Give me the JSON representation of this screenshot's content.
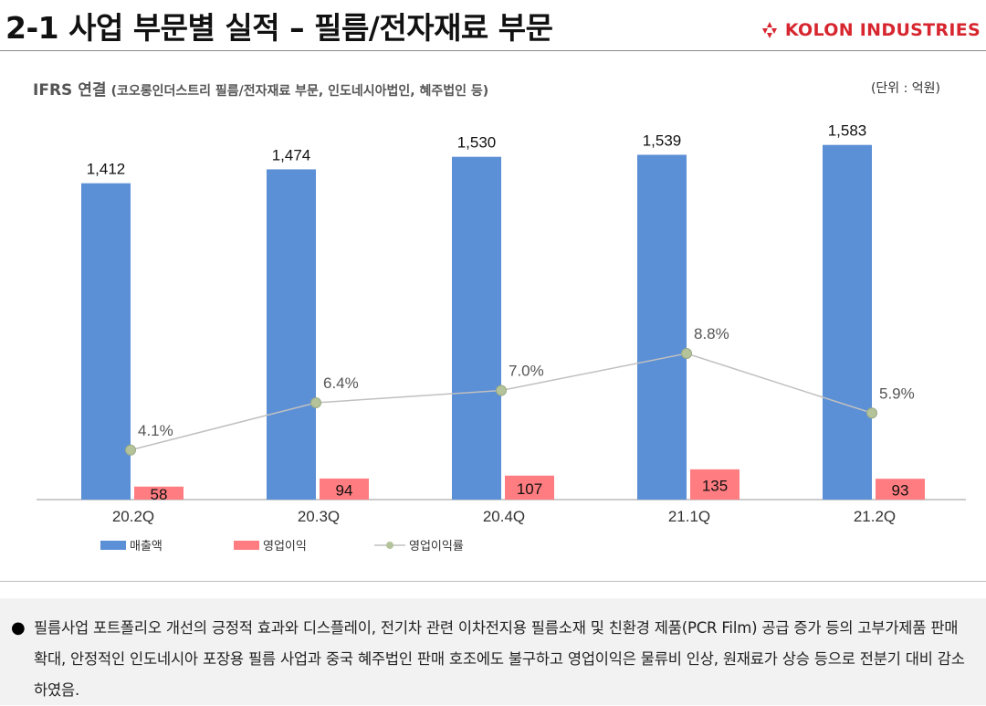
{
  "header": {
    "title": "2-1 사업 부문별 실적 – 필름/전자재료 부문",
    "logo_text": "KOLON INDUSTRIES",
    "logo_icon": "kolon-mark-icon",
    "brand_color": "#d7262f"
  },
  "chart_header": {
    "main": "IFRS 연결",
    "detail": "(코오롱인더스트리 필름/전자재료 부문, 인도네시아법인, 혜주법인 등)",
    "unit": "(단위 : 억원)"
  },
  "chart_data": {
    "type": "bar",
    "categories": [
      "20.2Q",
      "20.3Q",
      "20.4Q",
      "21.1Q",
      "21.2Q"
    ],
    "series": [
      {
        "name": "매출액",
        "type": "bar",
        "color": "#5b8fd6",
        "values": [
          1412,
          1474,
          1530,
          1539,
          1583
        ],
        "labels": [
          "1,412",
          "1,474",
          "1,530",
          "1,539",
          "1,583"
        ]
      },
      {
        "name": "영업이익",
        "type": "bar",
        "color": "#ff7c80",
        "values": [
          58,
          94,
          107,
          135,
          93
        ],
        "labels": [
          "58",
          "94",
          "107",
          "135",
          "93"
        ]
      },
      {
        "name": "영업이익률",
        "type": "line",
        "color": "#c0c0c0",
        "marker_color": "#b4c39a",
        "values": [
          4.1,
          6.4,
          7.0,
          8.8,
          5.9
        ],
        "labels": [
          "4.1%",
          "6.4%",
          "7.0%",
          "8.8%",
          "5.9%"
        ]
      }
    ],
    "legend_position": "bottom-left",
    "grid": false
  },
  "note": {
    "bullet": "●",
    "text": "필름사업 포트폴리오 개선의 긍정적 효과와 디스플레이, 전기차 관련 이차전지용 필름소재 및 친환경 제품(PCR Film) 공급 증가 등의 고부가제품 판매 확대, 안정적인 인도네시아 포장용 필름 사업과 중국 혜주법인 판매 호조에도 불구하고 영업이익은 물류비 인상, 원재료가 상승 등으로 전분기 대비 감소하였음."
  }
}
